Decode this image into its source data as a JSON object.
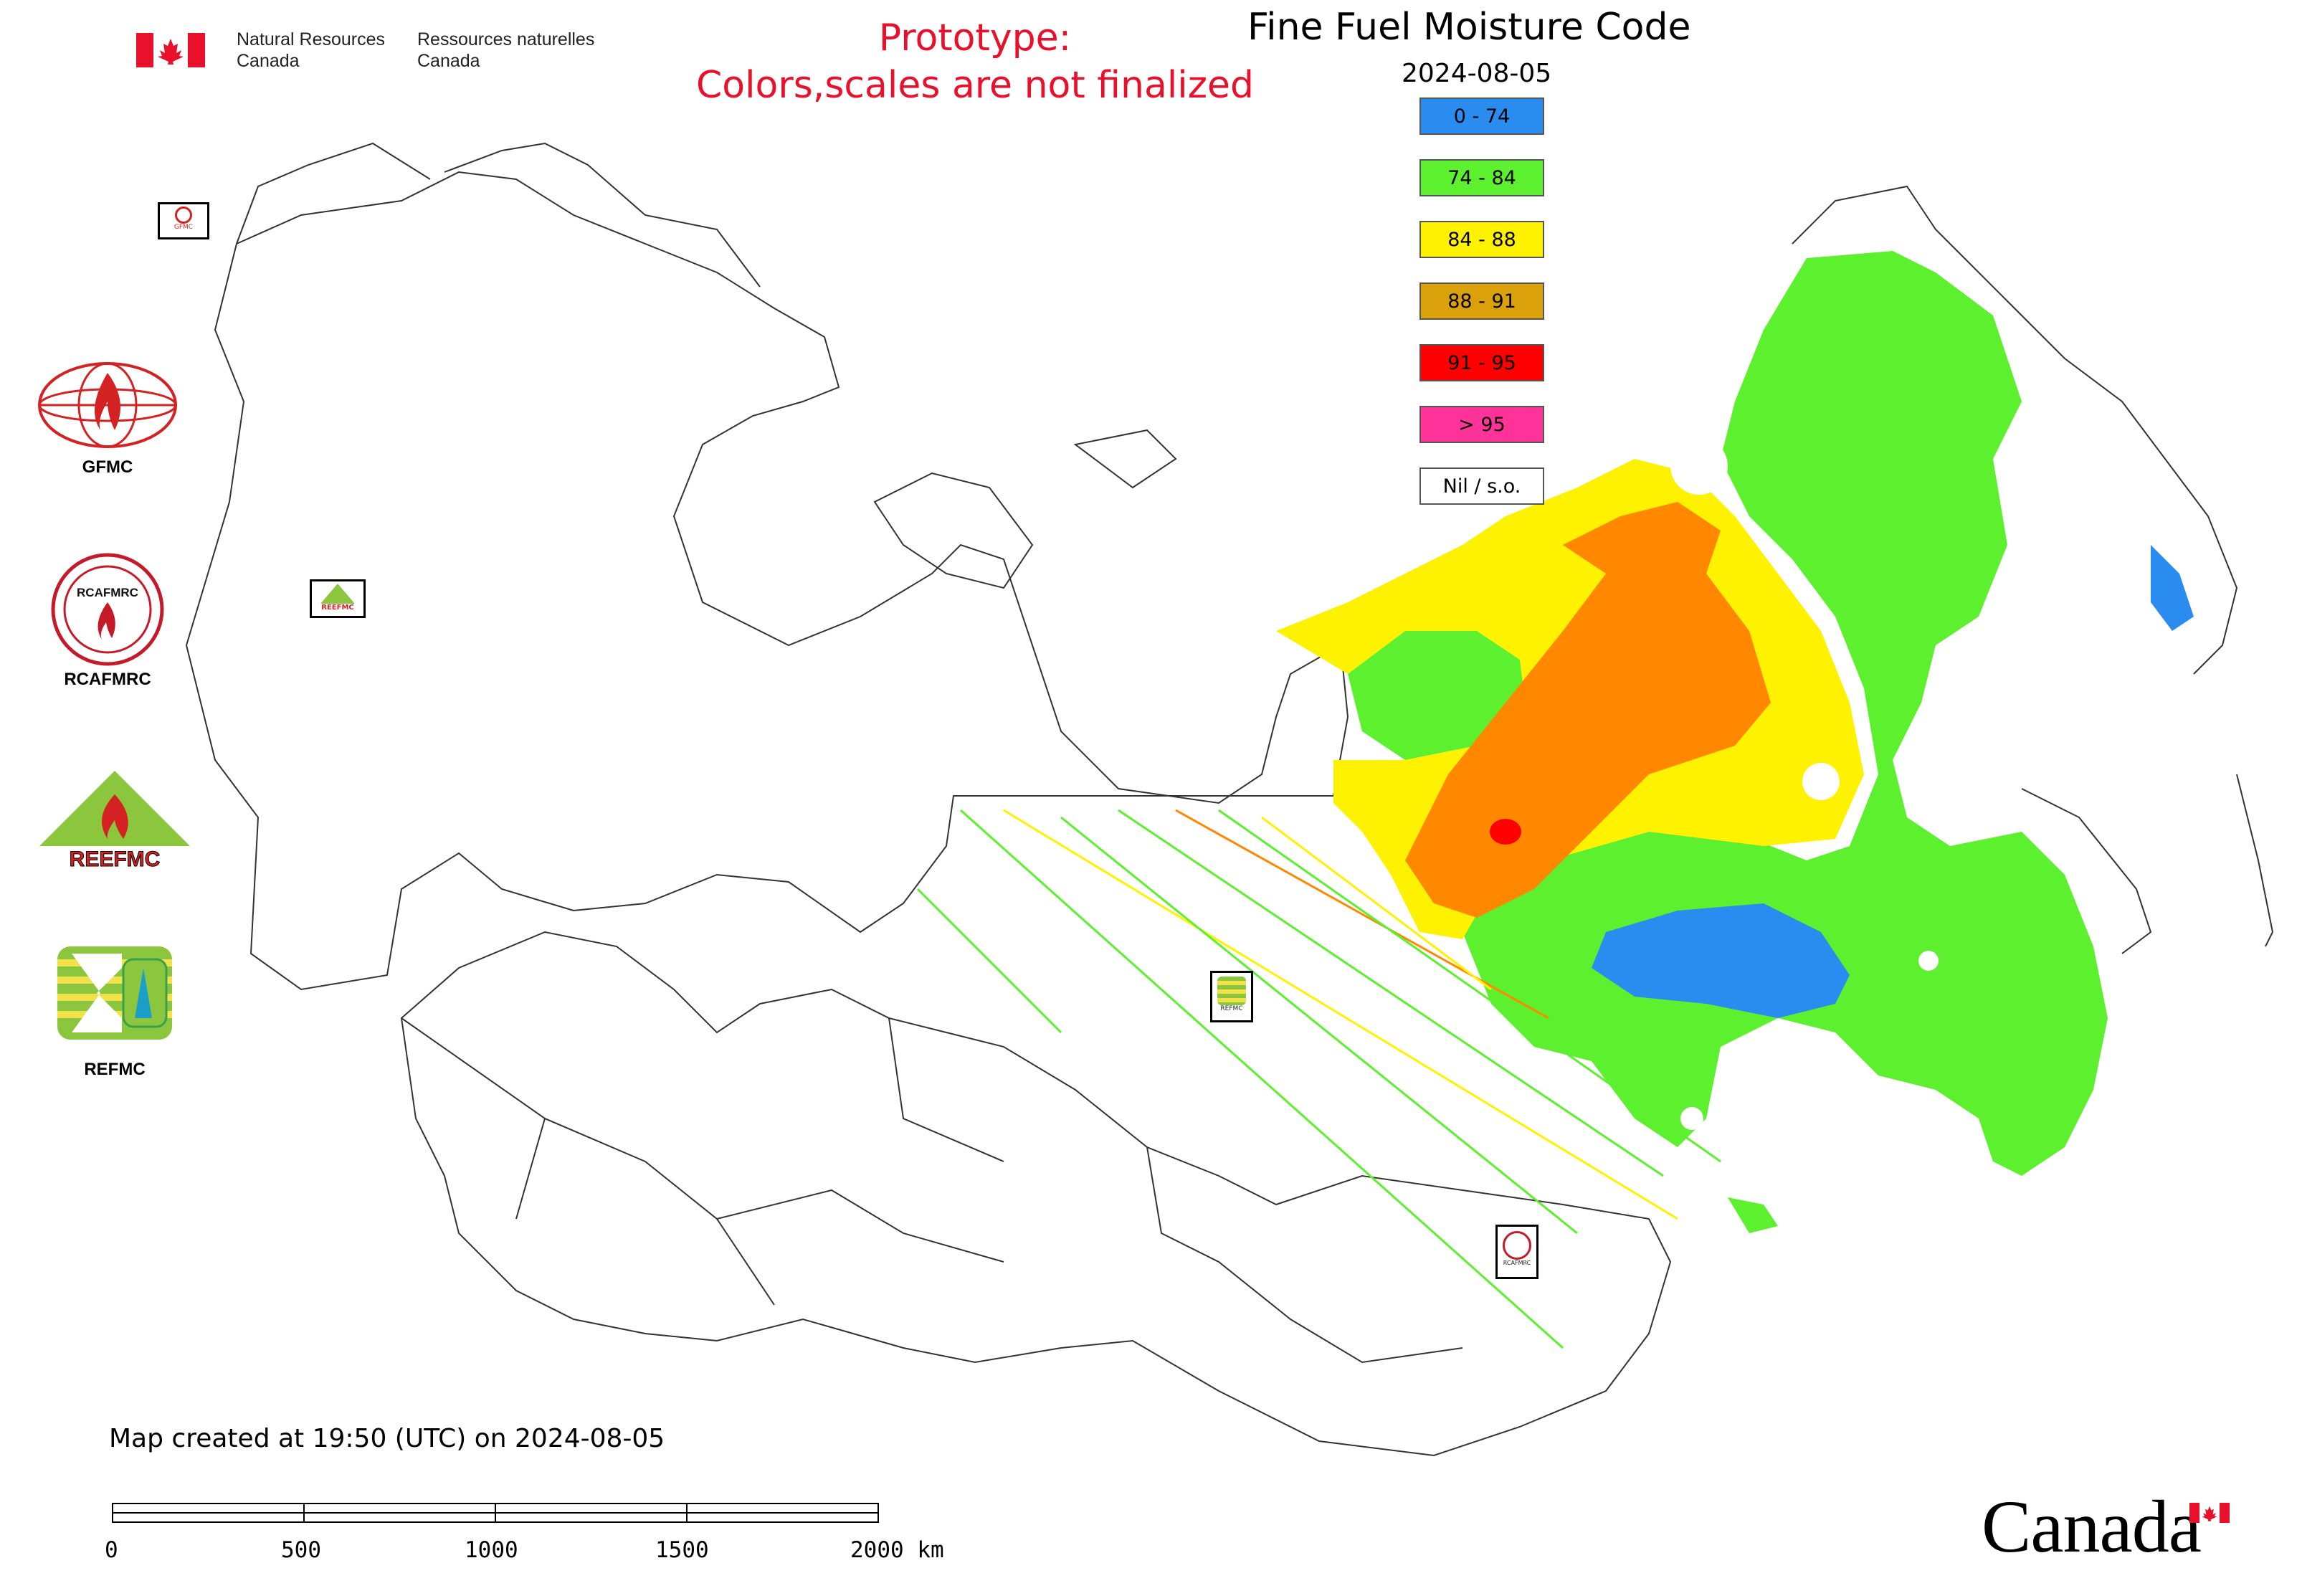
{
  "header": {
    "dept_en_line1": "Natural Resources",
    "dept_en_line2": "Canada",
    "dept_fr_line1": "Ressources naturelles",
    "dept_fr_line2": "Canada"
  },
  "prototype_notice": {
    "line1": "Prototype:",
    "line2": "Colors,scales are not finalized",
    "color": "#e8102a"
  },
  "map": {
    "title": "Fine Fuel Moisture Code",
    "date": "2024-08-05",
    "created_note": "Map created at 19:50 (UTC) on 2024-08-05"
  },
  "legend": [
    {
      "label": "0 - 74",
      "color": "#2b8cf0"
    },
    {
      "label": "74 - 84",
      "color": "#5cf02e"
    },
    {
      "label": "84 - 88",
      "color": "#fff200"
    },
    {
      "label": "88 - 91",
      "color": "#dba10a"
    },
    {
      "label": "91 - 95",
      "color": "#ff0000"
    },
    {
      "label": "> 95",
      "color": "#ff3399"
    },
    {
      "label": "Nil / s.o.",
      "color": "#ffffff"
    }
  ],
  "logos": [
    {
      "name": "GFMC",
      "label": "GFMC"
    },
    {
      "name": "RCAFMRC",
      "label": "RCAFMRC",
      "inner_text": "RCAFMRC"
    },
    {
      "name": "REEFMC",
      "label": "",
      "inner_text": "REEFMC"
    },
    {
      "name": "REFMC",
      "label": "REFMC"
    }
  ],
  "map_markers": [
    {
      "name": "GFMC",
      "text": "GFMC"
    },
    {
      "name": "REEFMC",
      "text": "REEFMC"
    },
    {
      "name": "REFMC",
      "text": "REFMC"
    },
    {
      "name": "RCAFMRC",
      "text": "RCAFMRC"
    }
  ],
  "scale_bar": {
    "ticks": [
      "0",
      "500",
      "1000",
      "1500",
      "2000 km"
    ]
  },
  "wordmark": "Canada",
  "colors": {
    "canada_red": "#e8102a",
    "boundary_line": "#333333"
  }
}
